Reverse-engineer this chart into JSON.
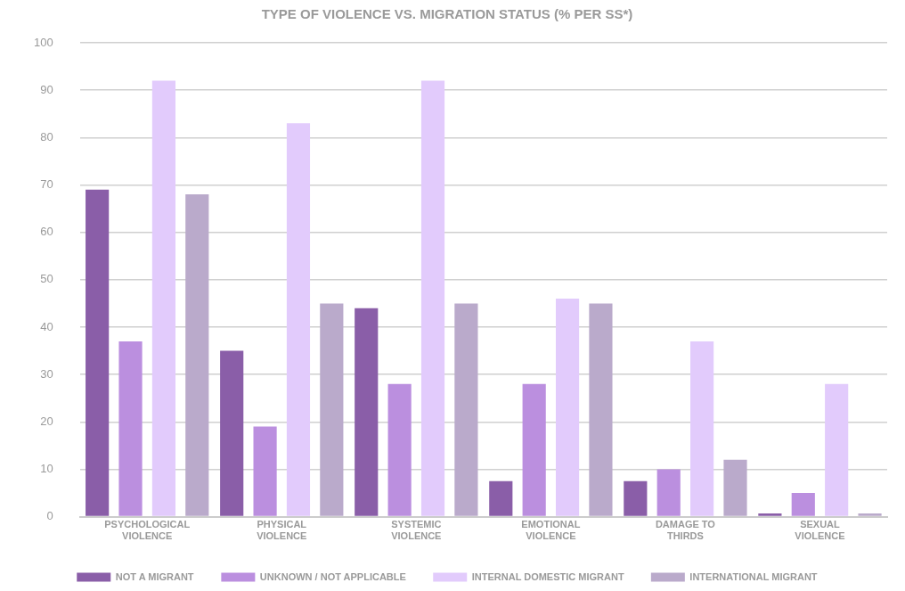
{
  "chart_data": {
    "type": "bar",
    "title": "TYPE OF VIOLENCE VS. MIGRATION STATUS (% PER SS*)",
    "categories": [
      "PSYCHOLOGICAL VIOLENCE",
      "PHYSICAL VIOLENCE",
      "SYSTEMIC VIOLENCE",
      "EMOTIONAL VIOLENCE",
      "DAMAGE TO THIRDS",
      "SEXUAL VIOLENCE"
    ],
    "series": [
      {
        "name": "NOT A MIGRANT",
        "color": "#8a5ea8",
        "values": [
          69,
          35,
          44,
          7.5,
          7.5,
          0.7
        ]
      },
      {
        "name": "UNKNOWN / NOT APPLICABLE",
        "color": "#bb8fdf",
        "values": [
          37,
          19,
          28,
          28,
          10,
          5
        ]
      },
      {
        "name": "INTERNAL DOMESTIC MIGRANT",
        "color": "#e2cbfc",
        "values": [
          92,
          83,
          92,
          46,
          37,
          28
        ]
      },
      {
        "name": "INTERNATIONAL MIGRANT",
        "color": "#baaacb",
        "values": [
          68,
          45,
          45,
          45,
          12,
          0.7
        ]
      }
    ],
    "ylim": [
      0,
      100
    ],
    "yticks": [
      0,
      10,
      20,
      30,
      40,
      50,
      60,
      70,
      80,
      90,
      100
    ],
    "grid": "y",
    "legend": "bottom"
  }
}
